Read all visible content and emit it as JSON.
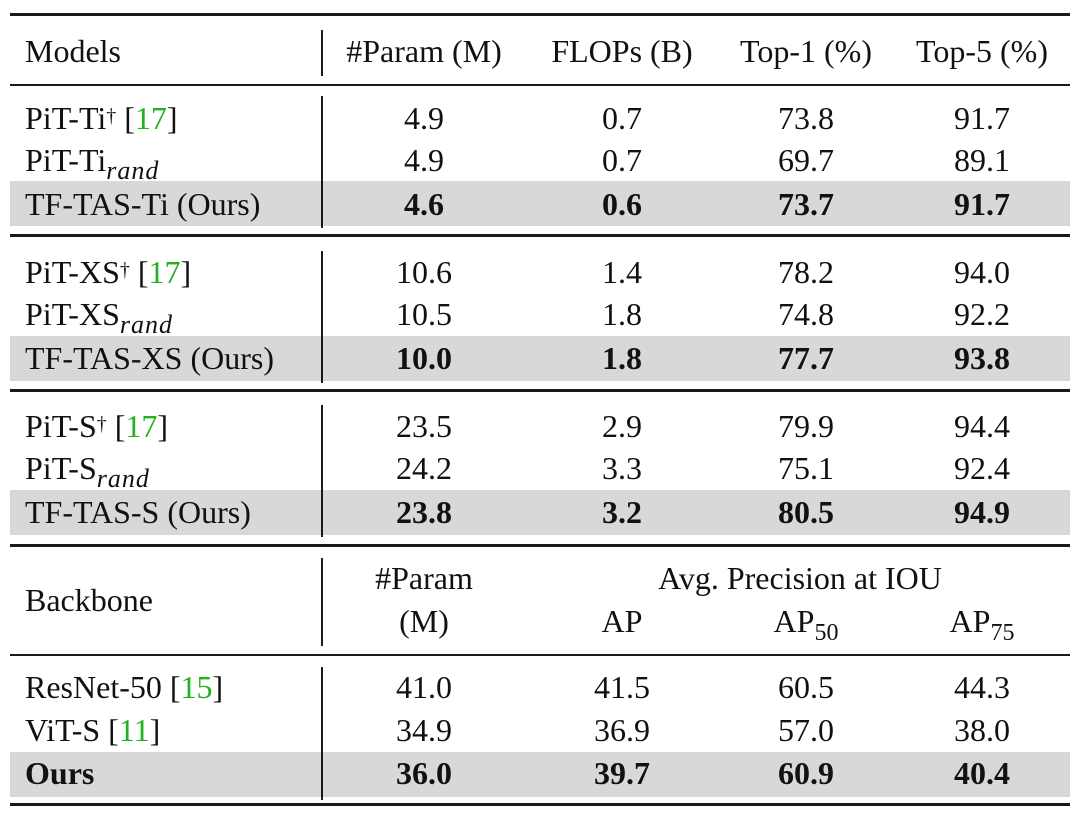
{
  "header": {
    "models": "Models",
    "param": "#Param (M)",
    "flops": "FLOPs (B)",
    "top1": "Top-1 (%)",
    "top5": "Top-5 (%)"
  },
  "groups": [
    {
      "rows": [
        {
          "name": "PiT-Ti",
          "sup": "†",
          "cite": "17",
          "param": "4.9",
          "flops": "0.7",
          "top1": "73.8",
          "top5": "91.7"
        },
        {
          "name": "PiT-Ti",
          "sub": "rand",
          "param": "4.9",
          "flops": "0.7",
          "top1": "69.7",
          "top5": "89.1"
        },
        {
          "name": "TF-TAS-Ti (Ours)",
          "param": "4.6",
          "flops": "0.6",
          "top1": "73.7",
          "top5": "91.7"
        }
      ]
    },
    {
      "rows": [
        {
          "name": "PiT-XS",
          "sup": "†",
          "cite": "17",
          "param": "10.6",
          "flops": "1.4",
          "top1": "78.2",
          "top5": "94.0"
        },
        {
          "name": "PiT-XS",
          "sub": "rand",
          "param": "10.5",
          "flops": "1.8",
          "top1": "74.8",
          "top5": "92.2"
        },
        {
          "name": "TF-TAS-XS (Ours)",
          "param": "10.0",
          "flops": "1.8",
          "top1": "77.7",
          "top5": "93.8"
        }
      ]
    },
    {
      "rows": [
        {
          "name": "PiT-S",
          "sup": "†",
          "cite": "17",
          "param": "23.5",
          "flops": "2.9",
          "top1": "79.9",
          "top5": "94.4"
        },
        {
          "name": "PiT-S",
          "sub": "rand",
          "param": "24.2",
          "flops": "3.3",
          "top1": "75.1",
          "top5": "92.4"
        },
        {
          "name": "TF-TAS-S (Ours)",
          "param": "23.8",
          "flops": "3.2",
          "top1": "80.5",
          "top5": "94.9"
        }
      ]
    }
  ],
  "det_header": {
    "backbone": "Backbone",
    "param_line1": "#Param",
    "param_line2": "(M)",
    "avg_precision": "Avg. Precision at IOU",
    "ap": "AP",
    "ap50": "AP",
    "ap50_sub": "50",
    "ap75": "AP",
    "ap75_sub": "75"
  },
  "det_rows": [
    {
      "name": "ResNet-50",
      "cite": "15",
      "param": "41.0",
      "ap": "41.5",
      "ap50": "60.5",
      "ap75": "44.3"
    },
    {
      "name": "ViT-S",
      "cite": "11",
      "param": "34.9",
      "ap": "36.9",
      "ap50": "57.0",
      "ap75": "38.0"
    },
    {
      "name": "Ours",
      "param": "36.0",
      "ap": "39.7",
      "ap50": "60.9",
      "ap75": "40.4"
    }
  ],
  "colors": {
    "citation": "#22b122",
    "highlight_row": "#d8d8d8",
    "rule": "#1a1a1a"
  }
}
